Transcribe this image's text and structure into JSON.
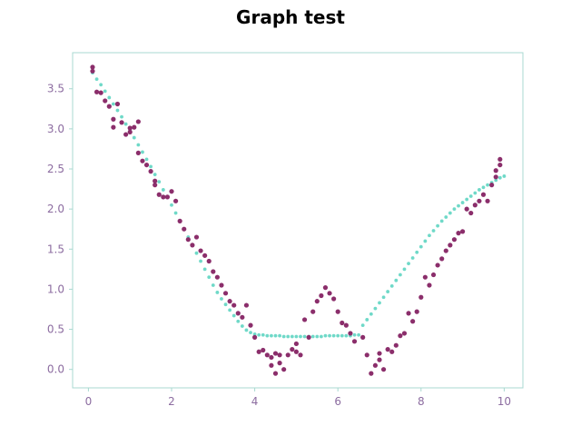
{
  "chart_data": {
    "type": "scatter",
    "title": "Graph test",
    "xlabel": "",
    "ylabel": "",
    "xlim": [
      -0.38,
      10.45
    ],
    "ylim": [
      -0.23,
      3.95
    ],
    "grid": false,
    "legend": "none",
    "xticks": [
      0,
      2,
      4,
      6,
      8,
      10
    ],
    "xtick_labels": [
      "0",
      "2",
      "4",
      "6",
      "8",
      "10"
    ],
    "yticks": [
      0.0,
      0.5,
      1.0,
      1.5,
      2.0,
      2.5,
      3.0,
      3.5
    ],
    "ytick_labels": [
      "0.0",
      "0.5",
      "1.0",
      "1.5",
      "2.0",
      "2.5",
      "3.0",
      "3.5"
    ],
    "colors": {
      "axes_spine": "#a8d8d0",
      "tick_text": "#8c6ca0",
      "fit_series": "#6fd9c8",
      "data_series": "#8b2e6b"
    },
    "series": [
      {
        "role": "fit",
        "marker": "small-dot",
        "color": "#6fd9c8",
        "x": [
          0.1,
          0.2,
          0.3,
          0.4,
          0.5,
          0.6,
          0.7,
          0.8,
          0.9,
          1.0,
          1.1,
          1.2,
          1.3,
          1.4,
          1.5,
          1.6,
          1.7,
          1.8,
          1.9,
          2.0,
          2.1,
          2.2,
          2.3,
          2.4,
          2.5,
          2.6,
          2.7,
          2.8,
          2.9,
          3.0,
          3.1,
          3.2,
          3.3,
          3.4,
          3.5,
          3.6,
          3.7,
          3.8,
          3.9,
          4.0,
          4.1,
          4.2,
          4.3,
          4.4,
          4.5,
          4.6,
          4.7,
          4.8,
          4.9,
          5.0,
          5.1,
          5.2,
          5.3,
          5.4,
          5.5,
          5.6,
          5.7,
          5.8,
          5.9,
          6.0,
          6.1,
          6.2,
          6.3,
          6.4,
          6.5,
          6.6,
          6.7,
          6.8,
          6.9,
          7.0,
          7.1,
          7.2,
          7.3,
          7.4,
          7.5,
          7.6,
          7.7,
          7.8,
          7.9,
          8.0,
          8.1,
          8.2,
          8.3,
          8.4,
          8.5,
          8.6,
          8.7,
          8.8,
          8.9,
          9.0,
          9.1,
          9.2,
          9.3,
          9.4,
          9.5,
          9.6,
          9.7,
          9.8,
          9.9,
          10.0
        ],
        "y": [
          3.7,
          3.62,
          3.55,
          3.47,
          3.39,
          3.31,
          3.23,
          3.15,
          3.06,
          2.98,
          2.89,
          2.8,
          2.71,
          2.62,
          2.53,
          2.43,
          2.34,
          2.24,
          2.15,
          2.05,
          1.95,
          1.85,
          1.75,
          1.65,
          1.55,
          1.45,
          1.35,
          1.25,
          1.15,
          1.05,
          0.96,
          0.88,
          0.81,
          0.74,
          0.67,
          0.6,
          0.54,
          0.49,
          0.46,
          0.44,
          0.43,
          0.43,
          0.42,
          0.42,
          0.42,
          0.42,
          0.41,
          0.41,
          0.41,
          0.41,
          0.41,
          0.41,
          0.41,
          0.41,
          0.41,
          0.41,
          0.42,
          0.42,
          0.42,
          0.42,
          0.42,
          0.42,
          0.42,
          0.43,
          0.43,
          0.55,
          0.62,
          0.69,
          0.76,
          0.83,
          0.9,
          0.97,
          1.04,
          1.11,
          1.18,
          1.25,
          1.32,
          1.39,
          1.46,
          1.53,
          1.6,
          1.67,
          1.73,
          1.79,
          1.85,
          1.9,
          1.95,
          2.0,
          2.04,
          2.08,
          2.12,
          2.16,
          2.2,
          2.24,
          2.27,
          2.3,
          2.33,
          2.36,
          2.39,
          2.41
        ]
      },
      {
        "role": "data",
        "marker": "dot",
        "color": "#8b2e6b",
        "x": [
          0.1,
          0.1,
          0.2,
          0.3,
          0.4,
          0.5,
          0.6,
          0.6,
          0.7,
          0.8,
          0.9,
          1.0,
          1.0,
          1.1,
          1.2,
          1.2,
          1.3,
          1.4,
          1.5,
          1.6,
          1.6,
          1.7,
          1.8,
          1.9,
          2.0,
          2.1,
          2.2,
          2.3,
          2.4,
          2.5,
          2.6,
          2.7,
          2.8,
          2.9,
          3.0,
          3.1,
          3.2,
          3.3,
          3.4,
          3.5,
          3.6,
          3.7,
          3.8,
          3.9,
          4.0,
          4.1,
          4.2,
          4.3,
          4.4,
          4.4,
          4.5,
          4.5,
          4.6,
          4.6,
          4.7,
          4.8,
          4.9,
          5.0,
          5.0,
          5.1,
          5.2,
          5.3,
          5.4,
          5.5,
          5.6,
          5.7,
          5.8,
          5.9,
          6.0,
          6.1,
          6.2,
          6.3,
          6.4,
          6.6,
          6.7,
          6.8,
          6.9,
          7.0,
          7.0,
          7.1,
          7.2,
          7.3,
          7.4,
          7.5,
          7.6,
          7.7,
          7.8,
          7.9,
          8.0,
          8.1,
          8.2,
          8.3,
          8.4,
          8.5,
          8.6,
          8.7,
          8.8,
          8.9,
          9.0,
          9.1,
          9.2,
          9.3,
          9.4,
          9.5,
          9.6,
          9.7,
          9.8,
          9.8,
          9.9,
          9.9
        ],
        "y": [
          3.77,
          3.72,
          3.46,
          3.45,
          3.35,
          3.28,
          3.12,
          3.02,
          3.31,
          3.08,
          2.93,
          3.01,
          2.96,
          3.02,
          2.7,
          3.09,
          2.6,
          2.55,
          2.47,
          2.35,
          2.3,
          2.18,
          2.15,
          2.15,
          2.22,
          2.1,
          1.85,
          1.75,
          1.62,
          1.55,
          1.65,
          1.48,
          1.42,
          1.35,
          1.22,
          1.15,
          1.05,
          0.95,
          0.85,
          0.8,
          0.7,
          0.65,
          0.8,
          0.55,
          0.4,
          0.22,
          0.24,
          0.18,
          0.15,
          0.05,
          0.2,
          -0.05,
          0.18,
          0.08,
          0.0,
          0.18,
          0.25,
          0.32,
          0.22,
          0.18,
          0.62,
          0.4,
          0.72,
          0.85,
          0.92,
          1.02,
          0.95,
          0.88,
          0.72,
          0.58,
          0.55,
          0.45,
          0.35,
          0.4,
          0.18,
          -0.05,
          0.05,
          0.12,
          0.2,
          0.0,
          0.25,
          0.22,
          0.3,
          0.42,
          0.45,
          0.7,
          0.6,
          0.72,
          0.9,
          1.15,
          1.05,
          1.18,
          1.3,
          1.38,
          1.48,
          1.55,
          1.62,
          1.7,
          1.72,
          2.0,
          1.95,
          2.05,
          2.1,
          2.18,
          2.1,
          2.3,
          2.4,
          2.48,
          2.55,
          2.62
        ]
      }
    ]
  }
}
